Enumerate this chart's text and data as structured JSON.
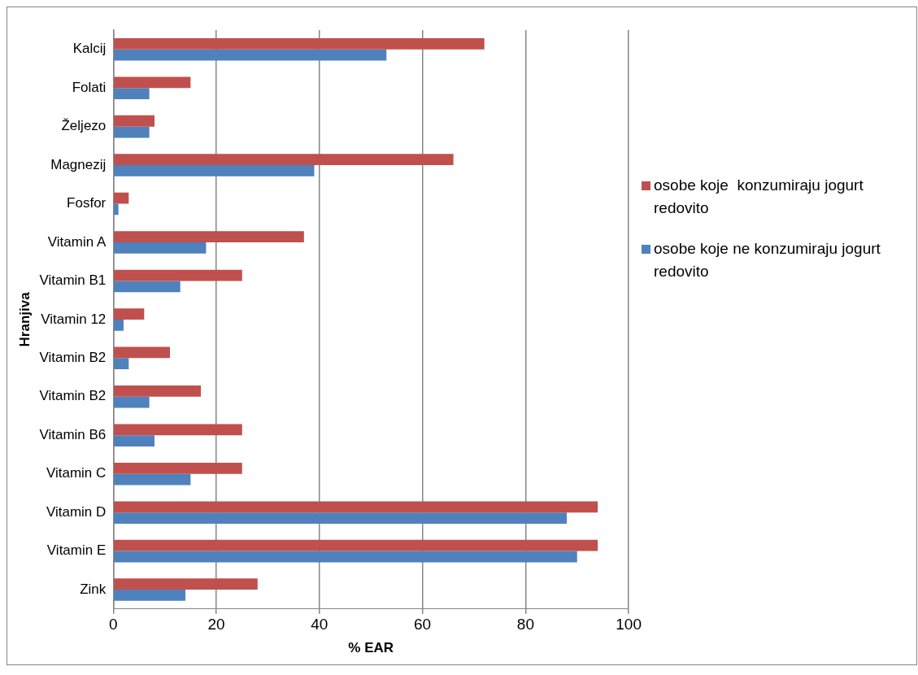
{
  "chart_data": {
    "type": "bar",
    "orientation": "horizontal",
    "xlabel": "% EAR",
    "ylabel": "Hranjiva",
    "categories": [
      "Kalcij",
      "Folati",
      "Željezo",
      "Magnezij",
      "Fosfor",
      "Vitamin A",
      "Vitamin B1",
      "Vitamin 12",
      "Vitamin B2",
      "Vitamin B2",
      "Vitamin B6",
      "Vitamin C",
      "Vitamin D",
      "Vitamin E",
      "Zink"
    ],
    "series": [
      {
        "name": "osobe koje  konzumiraju jogurt redovito",
        "color": "#c0504d",
        "values": [
          72,
          15,
          8,
          66,
          3,
          37,
          25,
          6,
          11,
          17,
          25,
          25,
          94,
          94,
          28
        ]
      },
      {
        "name": "osobe koje ne konzumiraju jogurt redovito",
        "color": "#4f81bd",
        "values": [
          53,
          7,
          7,
          39,
          1,
          18,
          13,
          2,
          3,
          7,
          8,
          15,
          88,
          90,
          14
        ]
      }
    ],
    "xlim": [
      0,
      100
    ],
    "xticks": [
      0,
      20,
      40,
      60,
      80,
      100
    ],
    "grid": "x",
    "legend": "right"
  }
}
